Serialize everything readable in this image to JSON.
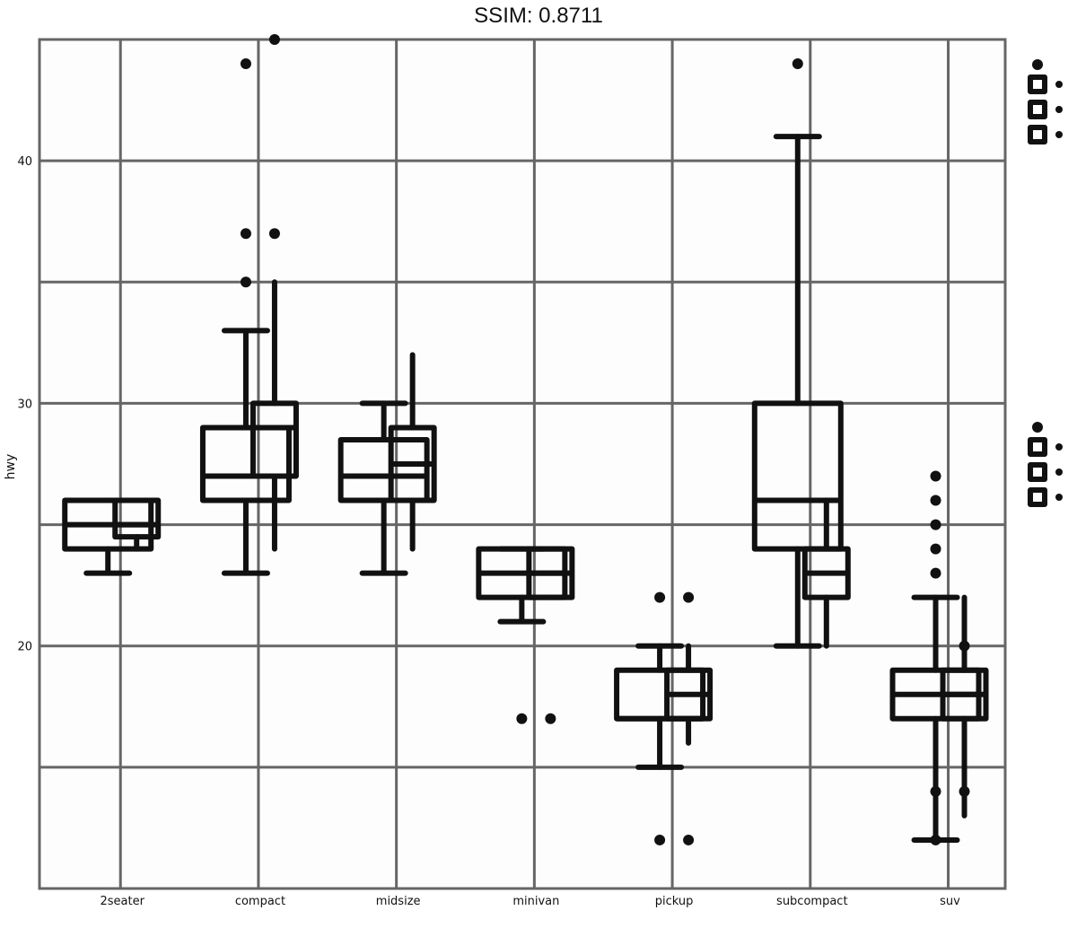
{
  "header": {
    "title": "SSIM: 0.8711"
  },
  "chart_data": {
    "type": "box",
    "title": "",
    "xlabel": "",
    "ylabel": "hwy",
    "ylim": [
      10,
      45
    ],
    "yticks": [
      20,
      30,
      40
    ],
    "ytick_labels": [
      "20",
      "30",
      "40"
    ],
    "grid": true,
    "legend_position": "right",
    "categories": [
      "2seater",
      "compact",
      "midsize",
      "minivan",
      "pickup",
      "subcompact",
      "suv"
    ],
    "series": [
      {
        "boxes": [
          {
            "category": "2seater",
            "whisker_low": 23,
            "q1": 24,
            "median": 25,
            "q3": 26,
            "whisker_high": 26,
            "outliers": []
          },
          {
            "category": "compact",
            "whisker_low": 23,
            "q1": 26,
            "median": 27,
            "q3": 29,
            "whisker_high": 33,
            "outliers": [
              35,
              37,
              44
            ]
          },
          {
            "category": "midsize",
            "whisker_low": 23,
            "q1": 26,
            "median": 27,
            "q3": 28.5,
            "whisker_high": 30,
            "outliers": []
          },
          {
            "category": "minivan",
            "whisker_low": 21,
            "q1": 22,
            "median": 23,
            "q3": 24,
            "whisker_high": 24,
            "outliers": [
              17
            ]
          },
          {
            "category": "pickup",
            "whisker_low": 15,
            "q1": 17,
            "median": 17,
            "q3": 19,
            "whisker_high": 20,
            "outliers": [
              12,
              22
            ]
          },
          {
            "category": "subcompact",
            "whisker_low": 20,
            "q1": 24,
            "median": 26,
            "q3": 30,
            "whisker_high": 41,
            "outliers": [
              44
            ]
          },
          {
            "category": "suv",
            "whisker_low": 12,
            "q1": 17,
            "median": 18,
            "q3": 19,
            "whisker_high": 22,
            "outliers": [
              12,
              14,
              23,
              24,
              25,
              26,
              27
            ]
          }
        ]
      },
      {
        "boxes": [
          {
            "category": "2seater",
            "whisker_low": 24,
            "q1": 24.5,
            "median": 25,
            "q3": 26,
            "whisker_high": 26,
            "outliers": []
          },
          {
            "category": "compact",
            "whisker_low": 24,
            "q1": 27,
            "median": 29,
            "q3": 30,
            "whisker_high": 35,
            "outliers": [
              37,
              45
            ]
          },
          {
            "category": "midsize",
            "whisker_low": 24,
            "q1": 26,
            "median": 27.5,
            "q3": 29,
            "whisker_high": 32,
            "outliers": []
          },
          {
            "category": "minivan",
            "whisker_low": 22,
            "q1": 22,
            "median": 23,
            "q3": 24,
            "whisker_high": 24,
            "outliers": [
              17
            ]
          },
          {
            "category": "pickup",
            "whisker_low": 16,
            "q1": 17,
            "median": 18,
            "q3": 19,
            "whisker_high": 20,
            "outliers": [
              12,
              22
            ]
          },
          {
            "category": "subcompact",
            "whisker_low": 20,
            "q1": 22,
            "median": 23,
            "q3": 24,
            "whisker_high": 26,
            "outliers": []
          },
          {
            "category": "suv",
            "whisker_low": 13,
            "q1": 17,
            "median": 18,
            "q3": 19,
            "whisker_high": 22,
            "outliers": [
              14,
              20
            ]
          }
        ]
      }
    ]
  }
}
